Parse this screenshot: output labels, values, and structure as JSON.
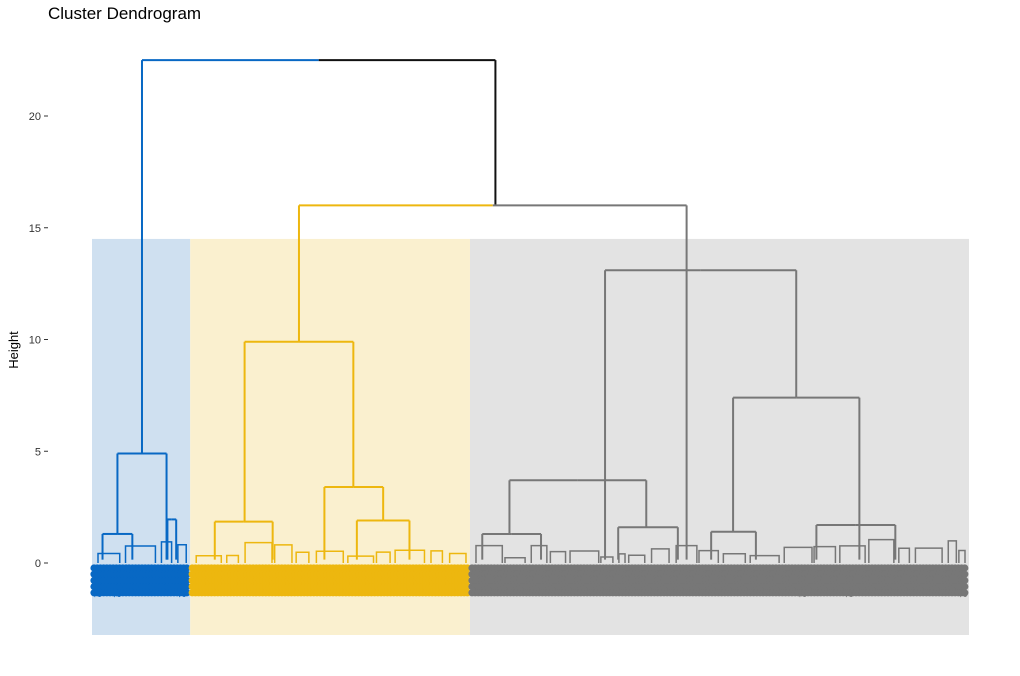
{
  "chart_data": {
    "type": "dendrogram",
    "title": "Cluster Dendrogram",
    "ylabel": "Height",
    "xlabel": "",
    "ylim": [
      -3.2,
      22.5
    ],
    "yticks": [
      0,
      5,
      10,
      15,
      20
    ],
    "grid": false,
    "clusters": [
      {
        "color": "#0868C4",
        "rect_color": "#CFE0F0",
        "leaf_span": [
          0,
          0.112
        ]
      },
      {
        "color": "#EDB70F",
        "rect_color": "#FAF0CF",
        "leaf_span": [
          0.112,
          0.431
        ]
      },
      {
        "color": "#777777",
        "rect_color": "#E3E3E3",
        "leaf_span": [
          0.431,
          1.0
        ]
      }
    ],
    "merges": [
      {
        "x": [
          0.057,
          0.46
        ],
        "height": 22.5,
        "colors": [
          "#0868C4",
          "#111111"
        ]
      },
      {
        "x": [
          0.236,
          0.678
        ],
        "height": 16.0,
        "colors": [
          "#EDB70F",
          "#777777"
        ]
      },
      {
        "x": [
          0.585,
          0.803
        ],
        "height": 13.1,
        "color": "#777777"
      },
      {
        "x": [
          0.174,
          0.298
        ],
        "height": 9.9,
        "color": "#EDB70F"
      },
      {
        "x": [
          0.731,
          0.875
        ],
        "height": 7.4,
        "color": "#777777"
      },
      {
        "x": [
          0.029,
          0.085
        ],
        "height": 4.9,
        "color": "#0868C4"
      },
      {
        "x": [
          0.476,
          0.632
        ],
        "height": 3.7,
        "color": "#777777"
      },
      {
        "x": [
          0.265,
          0.332
        ],
        "height": 3.4,
        "color": "#EDB70F"
      },
      {
        "x": [
          0.14,
          0.206
        ],
        "height": 1.85,
        "color": "#EDB70F"
      },
      {
        "x": [
          0.302,
          0.362
        ],
        "height": 1.9,
        "color": "#EDB70F"
      },
      {
        "x": [
          0.086,
          0.096
        ],
        "height": 1.95,
        "color": "#0868C4"
      },
      {
        "x": [
          0.012,
          0.046
        ],
        "height": 1.3,
        "color": "#0868C4"
      },
      {
        "x": [
          0.706,
          0.757
        ],
        "height": 1.4,
        "color": "#777777"
      },
      {
        "x": [
          0.826,
          0.916
        ],
        "height": 1.7,
        "color": "#777777"
      },
      {
        "x": [
          0.445,
          0.512
        ],
        "height": 1.3,
        "color": "#777777"
      },
      {
        "x": [
          0.6,
          0.668
        ],
        "height": 1.6,
        "color": "#777777"
      }
    ],
    "sample_leaf_labels": [
      "2",
      "2",
      "2",
      "2",
      "2",
      "2"
    ]
  }
}
